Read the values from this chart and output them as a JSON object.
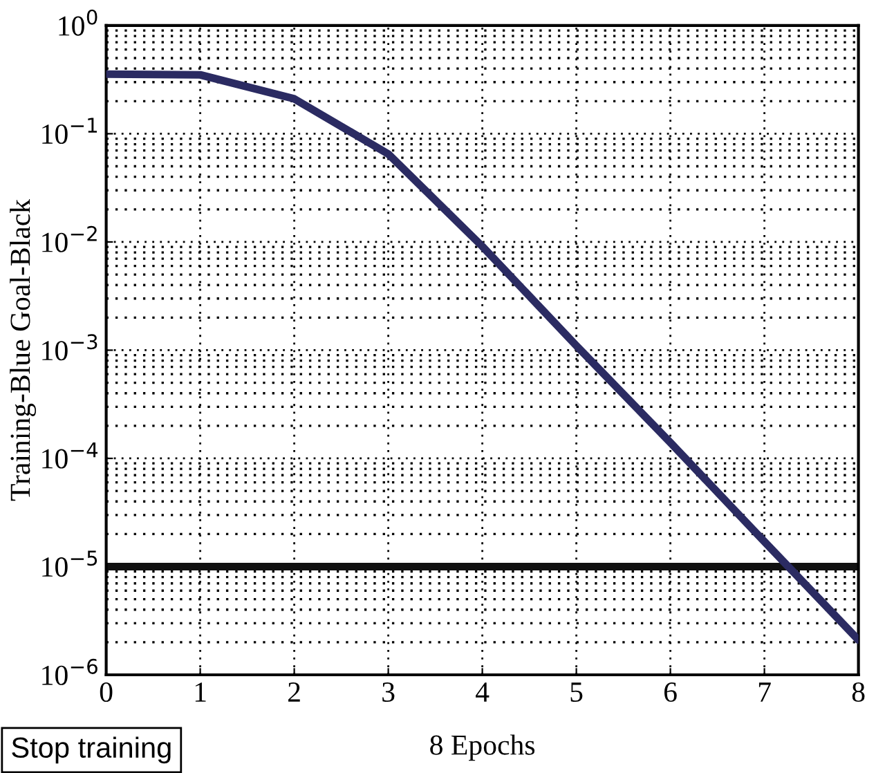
{
  "chart_data": {
    "type": "line",
    "xlabel": "8 Epochs",
    "ylabel": "Training-Blue Goal-Black",
    "x": [
      0,
      1,
      2,
      3,
      4,
      5,
      6,
      7,
      8
    ],
    "series": [
      {
        "color": "#2b2b62",
        "values": [
          0.355,
          0.35,
          0.21,
          0.065,
          0.0091,
          0.0011,
          0.00014,
          1.7e-05,
          2.1e-06
        ]
      }
    ],
    "log": "y",
    "xlim": [
      0,
      8
    ],
    "ylim": [
      1e-06,
      1
    ],
    "xticks": [
      0,
      1,
      2,
      3,
      4,
      5,
      6,
      7,
      8
    ],
    "yticks": [
      {
        "value": 1e-06,
        "label": "10$^{−6}$"
      },
      {
        "value": 1e-05,
        "label": "10$^{−5}$"
      },
      {
        "value": 0.0001,
        "label": "10$^{−4}$"
      },
      {
        "value": 0.001,
        "label": "10$^{−3}$"
      },
      {
        "value": 0.01,
        "label": "10$^{−2}$"
      },
      {
        "value": 0.1,
        "label": "10$^{−1}$"
      },
      {
        "value": 1,
        "label": "10$^{0}$"
      }
    ],
    "ref_lines": [
      {
        "axis": "y",
        "value": 1e-05,
        "color": "#111111"
      }
    ],
    "grid": true,
    "marker": "none",
    "line_style": "solid",
    "annotations": [
      "Stop training"
    ]
  }
}
